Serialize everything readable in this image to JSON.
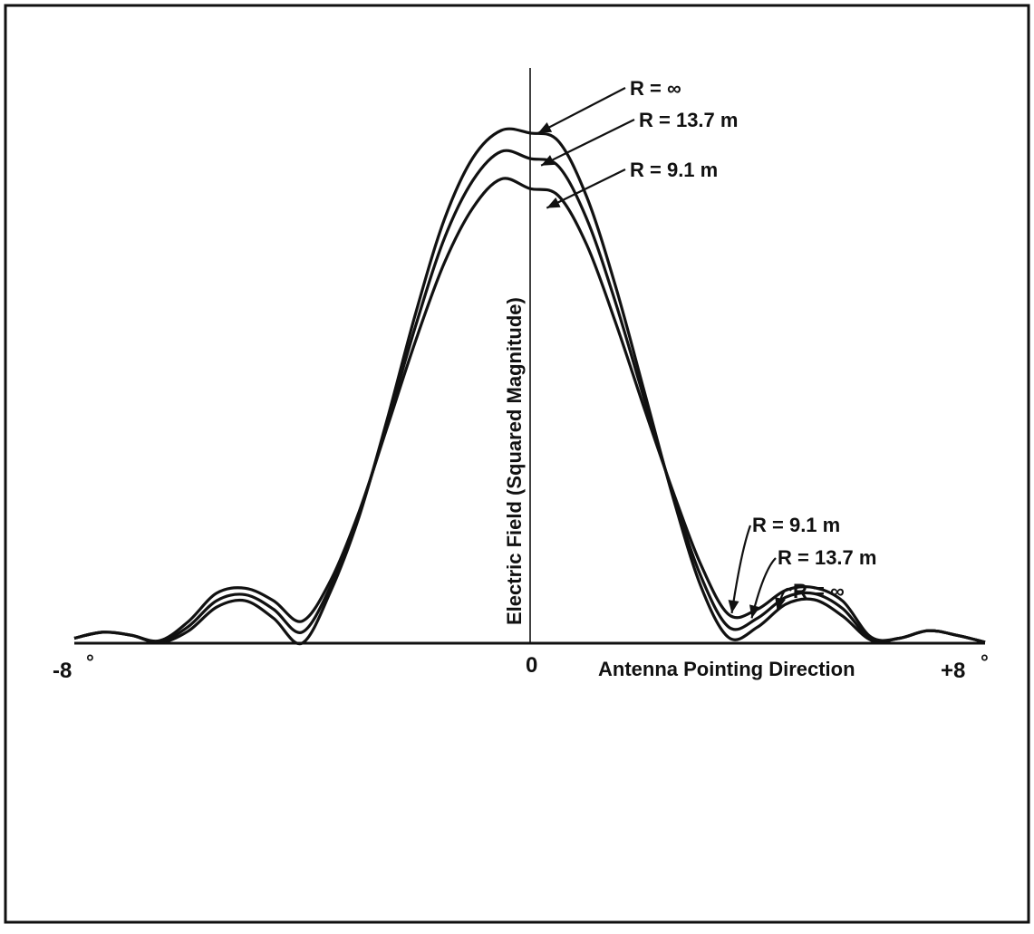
{
  "chart_data": {
    "type": "line",
    "title": "",
    "xlabel": "Antenna Pointing Direction",
    "ylabel": "Electric Field (Squared Magnitude)",
    "x_ticks": [
      "-8",
      "0",
      "+8"
    ],
    "degree_mark": "°",
    "xlim": [
      -8,
      8
    ],
    "ylim": [
      0,
      1.15
    ],
    "grid": false,
    "legend": "none",
    "series": [
      {
        "name": "R = ∞",
        "x": [
          -8,
          -7.5,
          -7,
          -6.5,
          -6,
          -5.5,
          -5,
          -4.5,
          -4,
          -3.5,
          -3,
          -2.5,
          -2,
          -1.5,
          -1,
          -0.5,
          0,
          0.5,
          1,
          1.5,
          2,
          2.5,
          3,
          3.5,
          4,
          4.5,
          5,
          5.5,
          6,
          6.5,
          7,
          7.5,
          8
        ],
        "values": [
          0.01,
          0.022,
          0.016,
          0.001,
          0.024,
          0.072,
          0.085,
          0.05,
          0.0,
          0.103,
          0.252,
          0.449,
          0.661,
          0.847,
          0.97,
          1.025,
          1.02,
          1.004,
          0.893,
          0.717,
          0.509,
          0.299,
          0.116,
          0.011,
          0.032,
          0.078,
          0.087,
          0.054,
          0.006,
          0.01,
          0.025,
          0.016,
          0.002
        ]
      },
      {
        "name": "R = 13.7 m",
        "x": [
          -8,
          -7.5,
          -7,
          -6.5,
          -6,
          -5.5,
          -5,
          -4.5,
          -4,
          -3.5,
          -3,
          -2.5,
          -2,
          -1.5,
          -1,
          -0.5,
          0,
          0.5,
          1,
          1.5,
          2,
          2.5,
          3,
          3.5,
          4,
          4.5,
          5,
          5.5,
          6,
          6.5,
          7,
          7.5,
          8
        ],
        "values": [
          0.01,
          0.022,
          0.016,
          0.003,
          0.033,
          0.085,
          0.097,
          0.068,
          0.022,
          0.113,
          0.256,
          0.441,
          0.636,
          0.809,
          0.925,
          0.983,
          0.969,
          0.954,
          0.849,
          0.684,
          0.493,
          0.304,
          0.136,
          0.032,
          0.05,
          0.092,
          0.099,
          0.069,
          0.008,
          0.01,
          0.025,
          0.016,
          0.002
        ]
      },
      {
        "name": "R = 9.1 m",
        "x": [
          -8,
          -7.5,
          -7,
          -6.5,
          -6,
          -5.5,
          -5,
          -4.5,
          -4,
          -3.5,
          -3,
          -2.5,
          -2,
          -1.5,
          -1,
          -0.5,
          0,
          0.5,
          1,
          1.5,
          2,
          2.5,
          3,
          3.5,
          4,
          4.5,
          5,
          5.5,
          6,
          6.5,
          7,
          7.5,
          8
        ],
        "values": [
          0.01,
          0.022,
          0.016,
          0.005,
          0.043,
          0.1,
          0.11,
          0.085,
          0.044,
          0.125,
          0.262,
          0.433,
          0.606,
          0.76,
          0.87,
          0.928,
          0.909,
          0.895,
          0.797,
          0.644,
          0.474,
          0.309,
          0.159,
          0.057,
          0.068,
          0.106,
          0.111,
          0.084,
          0.012,
          0.01,
          0.025,
          0.016,
          0.002
        ]
      }
    ],
    "annotations": [
      {
        "text": "R = ∞",
        "series": "R = ∞",
        "x": 0.15,
        "y": 1.02
      },
      {
        "text": "R = 13.7 m",
        "series": "R = 13.7 m",
        "x": 0.2,
        "y": 0.955
      },
      {
        "text": "R = 9.1 m",
        "series": "R = 9.1 m",
        "x": 0.3,
        "y": 0.87
      },
      {
        "text": "R = 9.1 m",
        "series": "R = 9.1 m",
        "x": 3.55,
        "y": 0.06
      },
      {
        "text": "R = 13.7 m",
        "series": "R = 13.7 m",
        "x": 3.9,
        "y": 0.05
      },
      {
        "text": "R = ∞",
        "series": "R = ∞",
        "x": 4.35,
        "y": 0.065
      }
    ]
  }
}
